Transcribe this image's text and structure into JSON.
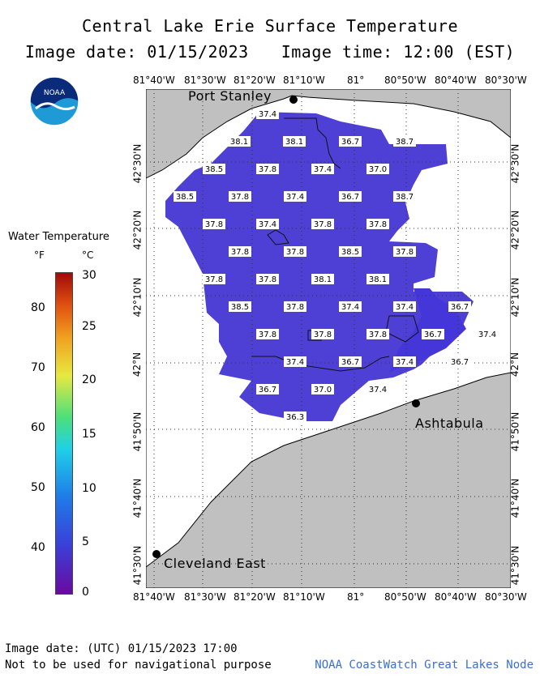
{
  "title": "Central Lake Erie Surface Temperature",
  "image_date": "Image date: 01/15/2023",
  "image_time": "Image time: 12:00 (EST)",
  "logo_text": "NOAA",
  "legend": {
    "title": "Water Temperature",
    "unit_f": "°F",
    "unit_c": "°C",
    "f_ticks": [
      "80",
      "70",
      "60",
      "50",
      "40"
    ],
    "c_ticks": [
      "30",
      "25",
      "20",
      "15",
      "10",
      "5",
      "0"
    ]
  },
  "lon_labels": [
    "81°40'W",
    "81°30'W",
    "81°20'W",
    "81°10'W",
    "81°",
    "80°50'W",
    "80°40'W",
    "80°30'W"
  ],
  "lat_labels": [
    "42°30'N",
    "42°20'N",
    "42°10'N",
    "42°N",
    "41°50'N",
    "41°40'N",
    "41°30'N"
  ],
  "cities": {
    "port_stanley": "Port Stanley",
    "ashtabula": "Ashtabula",
    "cleveland": "Cleveland East"
  },
  "temperature_labels": [
    {
      "v": "37.4"
    },
    {
      "v": "38.1"
    },
    {
      "v": "38.1"
    },
    {
      "v": "36.7"
    },
    {
      "v": "38.7"
    },
    {
      "v": "38.5"
    },
    {
      "v": "37.8"
    },
    {
      "v": "37.4"
    },
    {
      "v": "37.0"
    },
    {
      "v": "38.5"
    },
    {
      "v": "37.8"
    },
    {
      "v": "37.4"
    },
    {
      "v": "36.7"
    },
    {
      "v": "38.7"
    },
    {
      "v": "37.8"
    },
    {
      "v": "37.4"
    },
    {
      "v": "37.8"
    },
    {
      "v": "37.8"
    },
    {
      "v": "37.8"
    },
    {
      "v": "37.8"
    },
    {
      "v": "38.5"
    },
    {
      "v": "37.8"
    },
    {
      "v": "37.8"
    },
    {
      "v": "37.8"
    },
    {
      "v": "38.1"
    },
    {
      "v": "38.1"
    },
    {
      "v": "38.5"
    },
    {
      "v": "37.8"
    },
    {
      "v": "37.4"
    },
    {
      "v": "37.4"
    },
    {
      "v": "36.7"
    },
    {
      "v": "37.8"
    },
    {
      "v": "37.8"
    },
    {
      "v": "37.8"
    },
    {
      "v": "36.7"
    },
    {
      "v": "37.4"
    },
    {
      "v": "37.4"
    },
    {
      "v": "36.7"
    },
    {
      "v": "37.4"
    },
    {
      "v": "36.7"
    },
    {
      "v": "36.7"
    },
    {
      "v": "37.0"
    },
    {
      "v": "37.4"
    },
    {
      "v": "36.3"
    }
  ],
  "footer": {
    "utc_date": "Image date: (UTC) 01/15/2023  17:00",
    "disclaimer": "Not to be used for navigational purpose",
    "credit": "NOAA CoastWatch Great Lakes Node"
  },
  "colors": {
    "land": "#c0c0c0",
    "water_warm": "#5a3fd0",
    "water_cool": "#4a42d8"
  }
}
